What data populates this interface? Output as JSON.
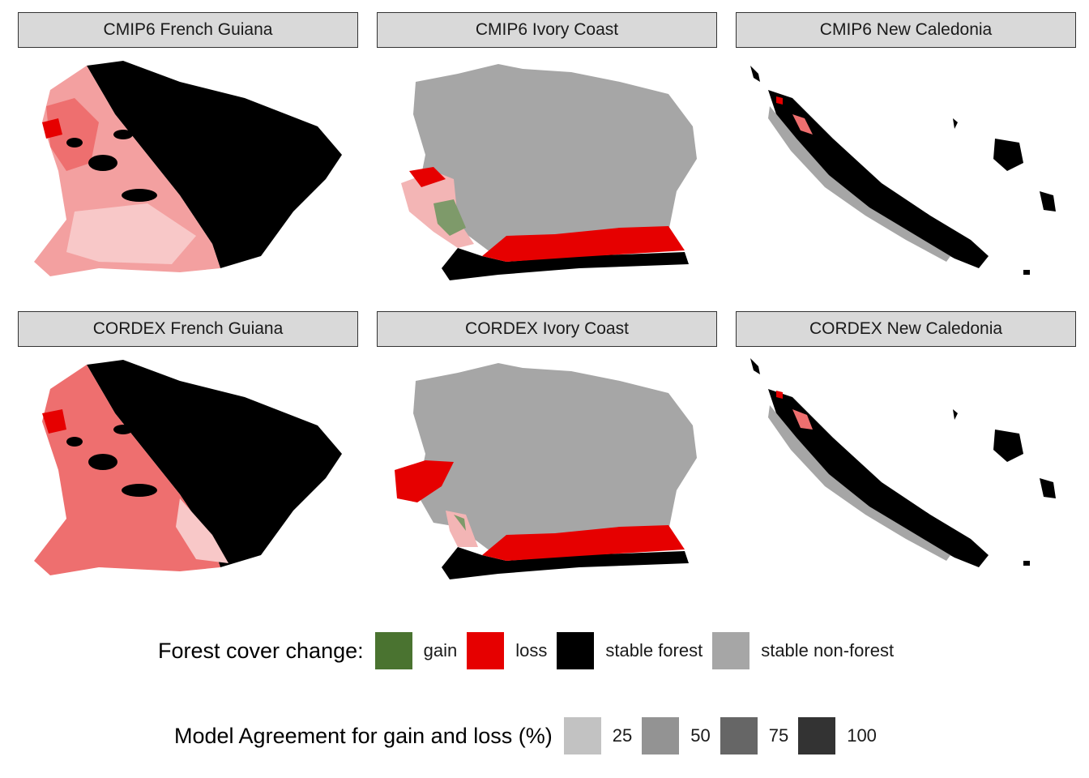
{
  "panels": [
    {
      "title": "CMIP6 French Guiana"
    },
    {
      "title": "CMIP6 Ivory Coast"
    },
    {
      "title": "CMIP6 New Caledonia"
    },
    {
      "title": "CORDEX French Guiana"
    },
    {
      "title": "CORDEX Ivory Coast"
    },
    {
      "title": "CORDEX New Caledonia"
    }
  ],
  "legend_change": {
    "title": "Forest cover change:",
    "items": [
      {
        "label": "gain",
        "color": "#4a7330"
      },
      {
        "label": "loss",
        "color": "#e60000"
      },
      {
        "label": "stable forest",
        "color": "#000000"
      },
      {
        "label": "stable non-forest",
        "color": "#a6a6a6"
      }
    ]
  },
  "legend_agreement": {
    "title": "Model Agreement for gain and loss (%)",
    "items": [
      {
        "label": "25",
        "color": "#c2c2c2"
      },
      {
        "label": "50",
        "color": "#939393"
      },
      {
        "label": "75",
        "color": "#666666"
      },
      {
        "label": "100",
        "color": "#333333"
      }
    ]
  }
}
